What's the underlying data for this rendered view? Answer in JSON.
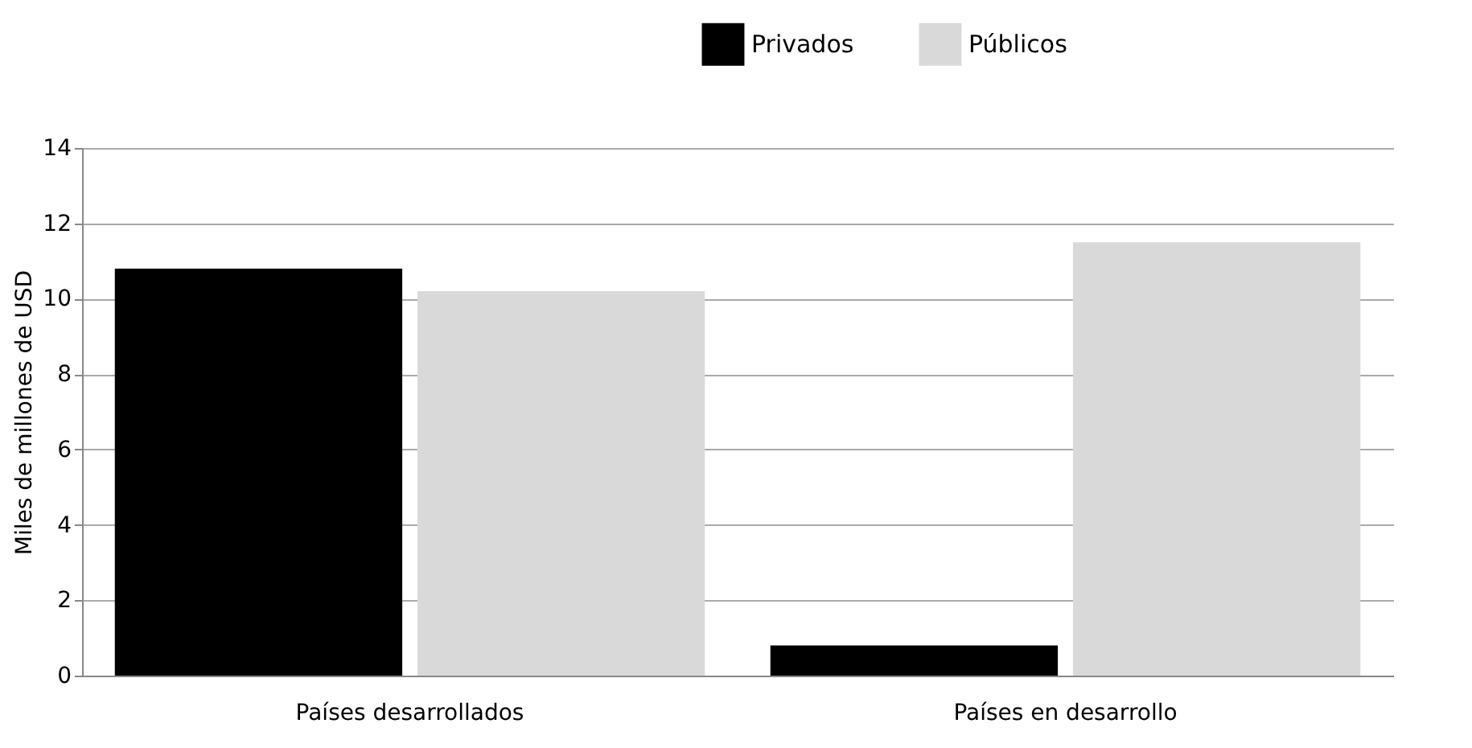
{
  "chart_data": {
    "type": "bar",
    "ylabel": "Miles de millones de USD",
    "categories": [
      "Países desarrollados",
      "Países en desarrollo"
    ],
    "series": [
      {
        "name": "Privados",
        "color": "#000000",
        "values": [
          10.8,
          0.8
        ]
      },
      {
        "name": "Públicos",
        "color": "#d9d9d9",
        "values": [
          10.2,
          11.5
        ]
      }
    ],
    "ylim": [
      0,
      14
    ],
    "yticks": [
      0,
      2,
      4,
      6,
      8,
      10,
      12,
      14
    ],
    "grid": "y",
    "legend": "top right"
  }
}
